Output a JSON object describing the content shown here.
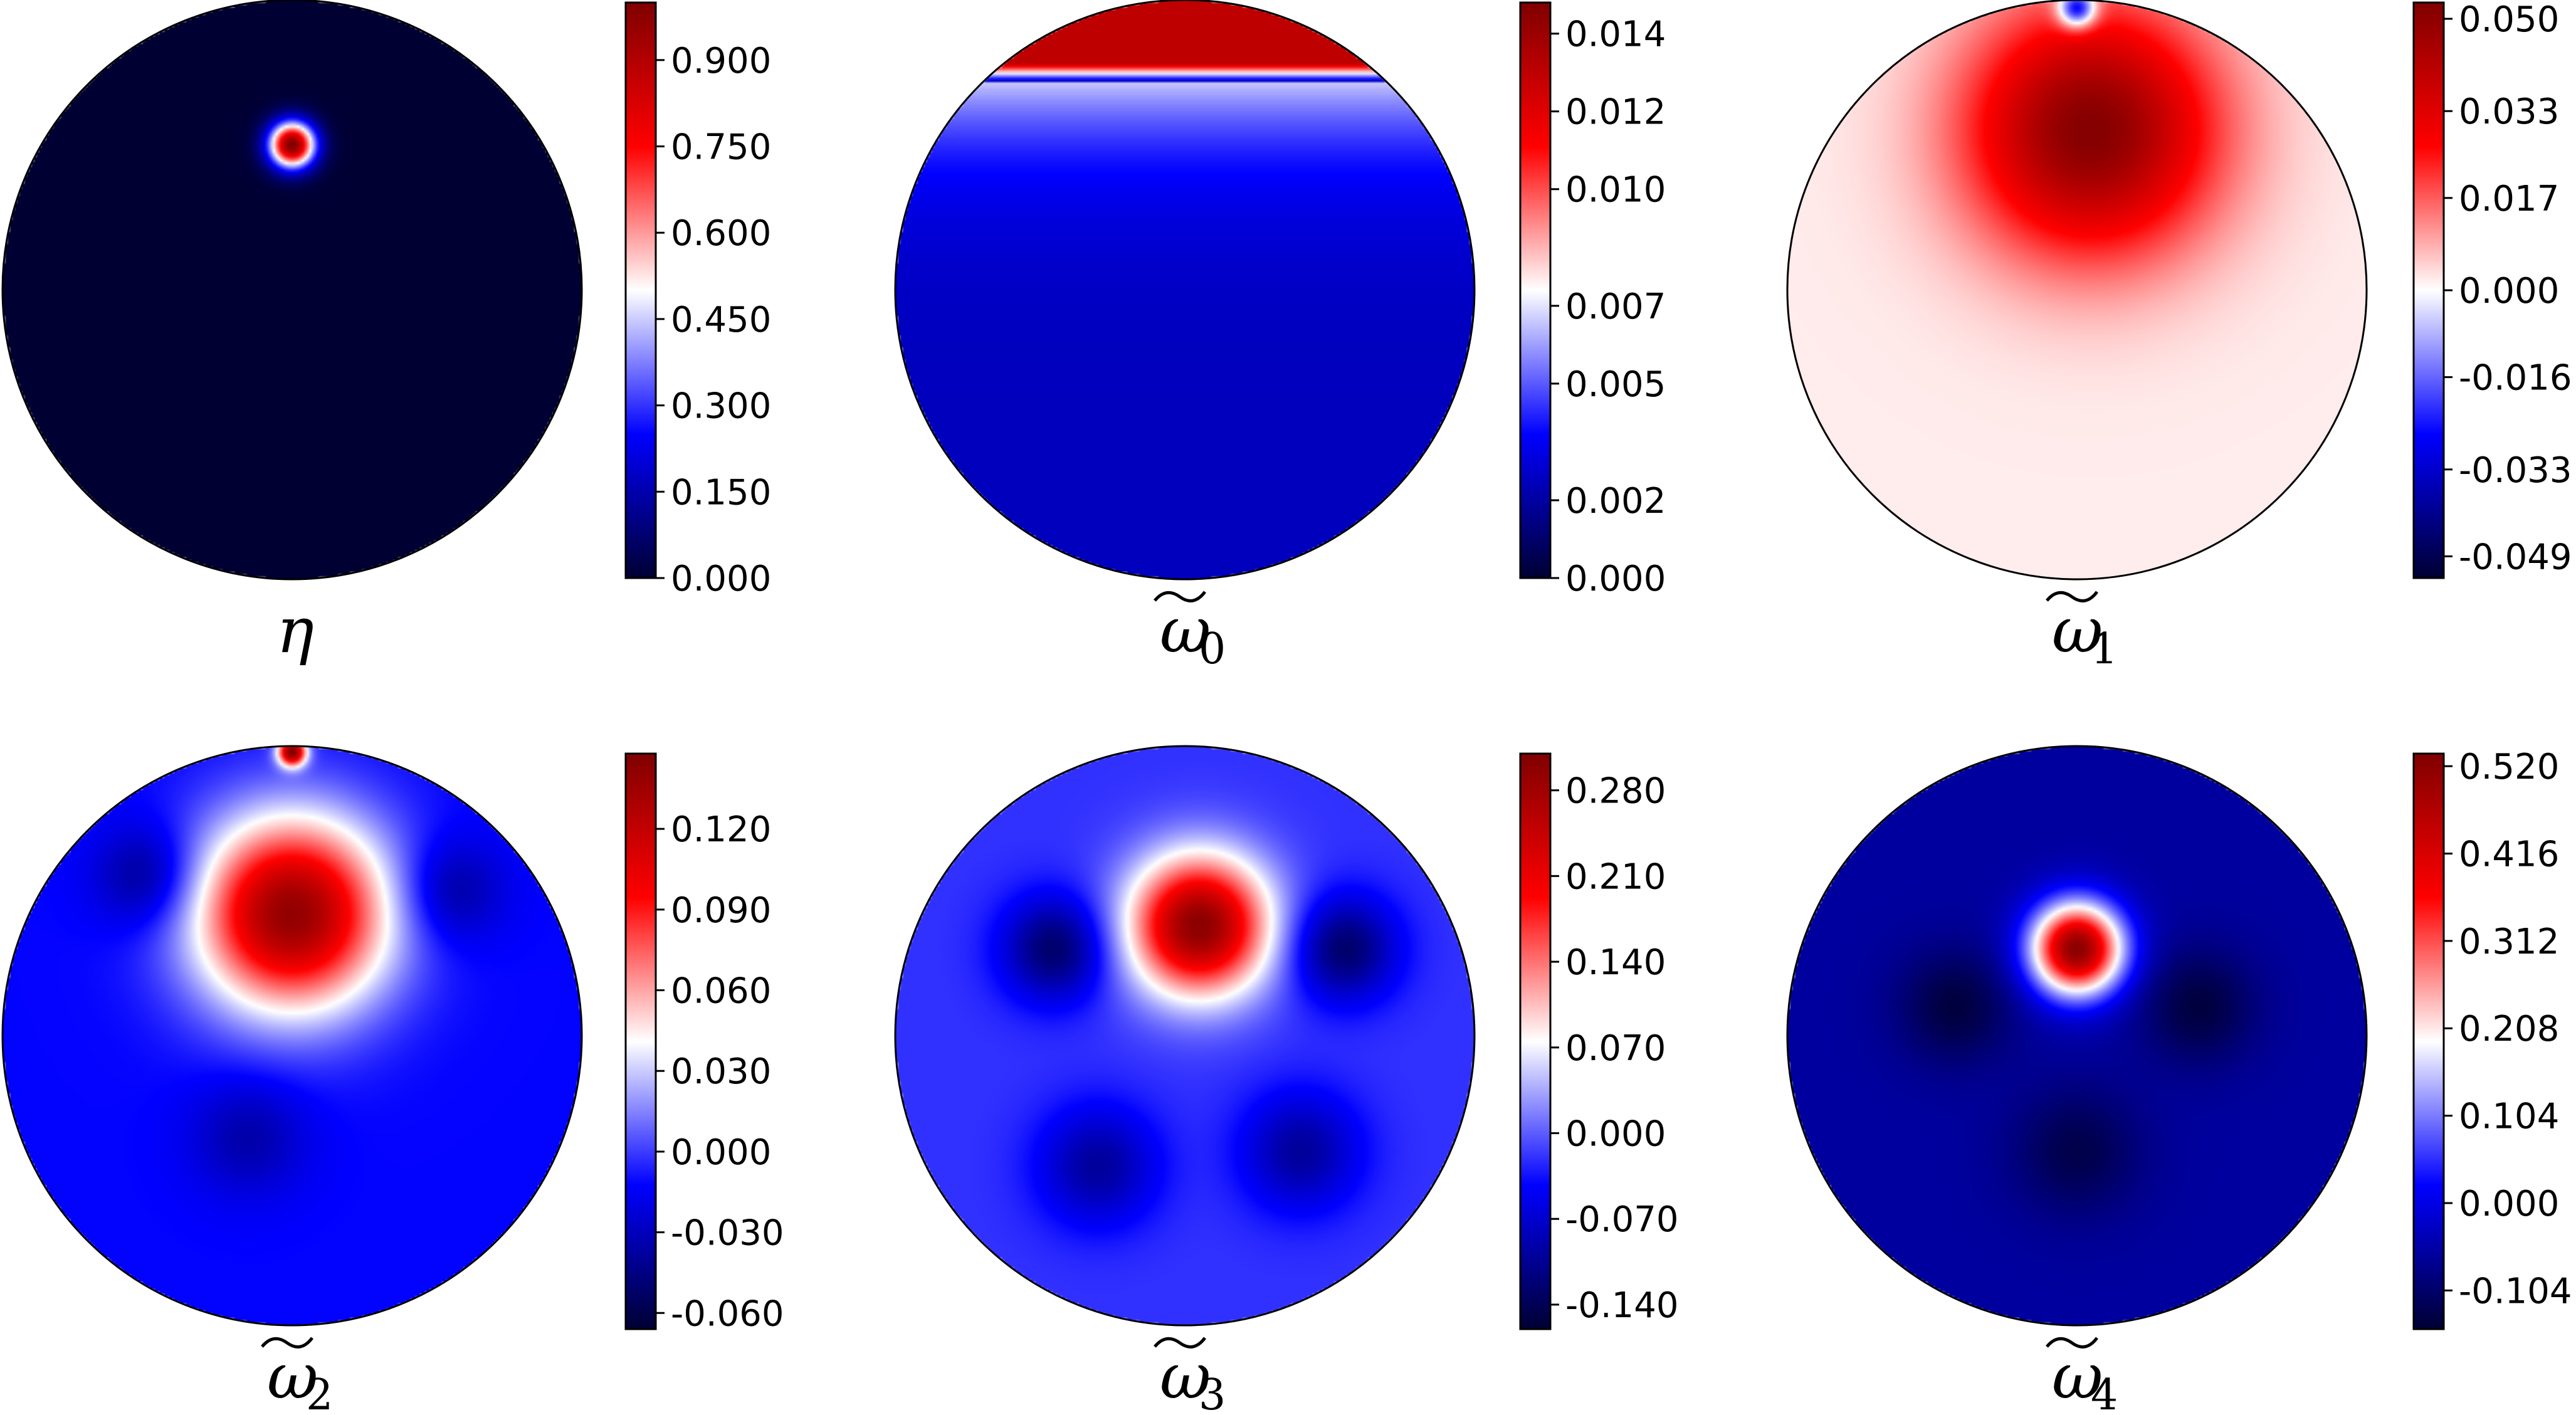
{
  "colors": {
    "colormap": [
      "#000033",
      "#0000ff",
      "#ffffff",
      "#ff0000",
      "#800000"
    ],
    "outline": "#000000"
  },
  "chart_data": [
    {
      "type": "heatmap",
      "label_symbol": "η",
      "label_subscript": "",
      "colorbar_ticks": [
        "0.000",
        "0.150",
        "0.300",
        "0.450",
        "0.600",
        "0.750",
        "0.900"
      ],
      "range": [
        0.0,
        1.0
      ],
      "background_value": 0.0,
      "blobs": [
        {
          "cx": 0.0,
          "cy": 0.5,
          "r": 0.1,
          "v": 1.0
        }
      ]
    },
    {
      "type": "heatmap",
      "label_symbol": "ω",
      "label_subscript": "0",
      "colorbar_ticks": [
        "0.000",
        "0.002",
        "0.005",
        "0.007",
        "0.010",
        "0.012",
        "0.014"
      ],
      "range": [
        0.0,
        0.0148
      ],
      "background_value": 0.0025,
      "cap": {
        "threshold": 0.72,
        "value": 0.013
      },
      "blobs": []
    },
    {
      "type": "heatmap",
      "label_symbol": "ω",
      "label_subscript": "1",
      "colorbar_ticks": [
        "-0.049",
        "-0.033",
        "-0.016",
        "0.000",
        "0.017",
        "0.033",
        "0.050"
      ],
      "range": [
        -0.053,
        0.053
      ],
      "background_value": 0.002,
      "blobs": [
        {
          "cx": 0.05,
          "cy": 0.55,
          "r": 0.55,
          "v": 0.052
        },
        {
          "cx": 0.0,
          "cy": 0.97,
          "r": 0.08,
          "v": -0.045
        }
      ]
    },
    {
      "type": "heatmap",
      "label_symbol": "ω",
      "label_subscript": "2",
      "colorbar_ticks": [
        "-0.060",
        "-0.030",
        "0.000",
        "0.030",
        "0.060",
        "0.090",
        "0.120"
      ],
      "range": [
        -0.066,
        0.148
      ],
      "background_value": -0.012,
      "blobs": [
        {
          "cx": 0.0,
          "cy": 0.42,
          "r": 0.42,
          "v": 0.14
        },
        {
          "cx": 0.0,
          "cy": 0.98,
          "r": 0.06,
          "v": 0.14
        },
        {
          "cx": -0.5,
          "cy": 0.55,
          "r": 0.22,
          "v": -0.045
        },
        {
          "cx": 0.55,
          "cy": 0.5,
          "r": 0.22,
          "v": -0.04
        },
        {
          "cx": -0.15,
          "cy": -0.35,
          "r": 0.25,
          "v": -0.035
        }
      ]
    },
    {
      "type": "heatmap",
      "label_symbol": "ω",
      "label_subscript": "3",
      "colorbar_ticks": [
        "-0.140",
        "-0.070",
        "0.000",
        "0.070",
        "0.140",
        "0.210",
        "0.280"
      ],
      "range": [
        -0.16,
        0.31
      ],
      "background_value": -0.02,
      "blobs": [
        {
          "cx": 0.05,
          "cy": 0.38,
          "r": 0.3,
          "v": 0.3
        },
        {
          "cx": -0.45,
          "cy": 0.3,
          "r": 0.22,
          "v": -0.13
        },
        {
          "cx": 0.55,
          "cy": 0.3,
          "r": 0.22,
          "v": -0.13
        },
        {
          "cx": -0.3,
          "cy": -0.45,
          "r": 0.25,
          "v": -0.1
        },
        {
          "cx": 0.4,
          "cy": -0.4,
          "r": 0.25,
          "v": -0.1
        }
      ]
    },
    {
      "type": "heatmap",
      "label_symbol": "ω",
      "label_subscript": "4",
      "colorbar_ticks": [
        "-0.104",
        "0.000",
        "0.104",
        "0.208",
        "0.312",
        "0.416",
        "0.520"
      ],
      "range": [
        -0.15,
        0.535
      ],
      "background_value": -0.06,
      "blobs": [
        {
          "cx": 0.0,
          "cy": 0.3,
          "r": 0.2,
          "v": 0.52
        },
        {
          "cx": -0.42,
          "cy": 0.1,
          "r": 0.25,
          "v": -0.14
        },
        {
          "cx": 0.42,
          "cy": 0.1,
          "r": 0.25,
          "v": -0.14
        },
        {
          "cx": 0.0,
          "cy": -0.4,
          "r": 0.28,
          "v": -0.13
        }
      ]
    }
  ]
}
